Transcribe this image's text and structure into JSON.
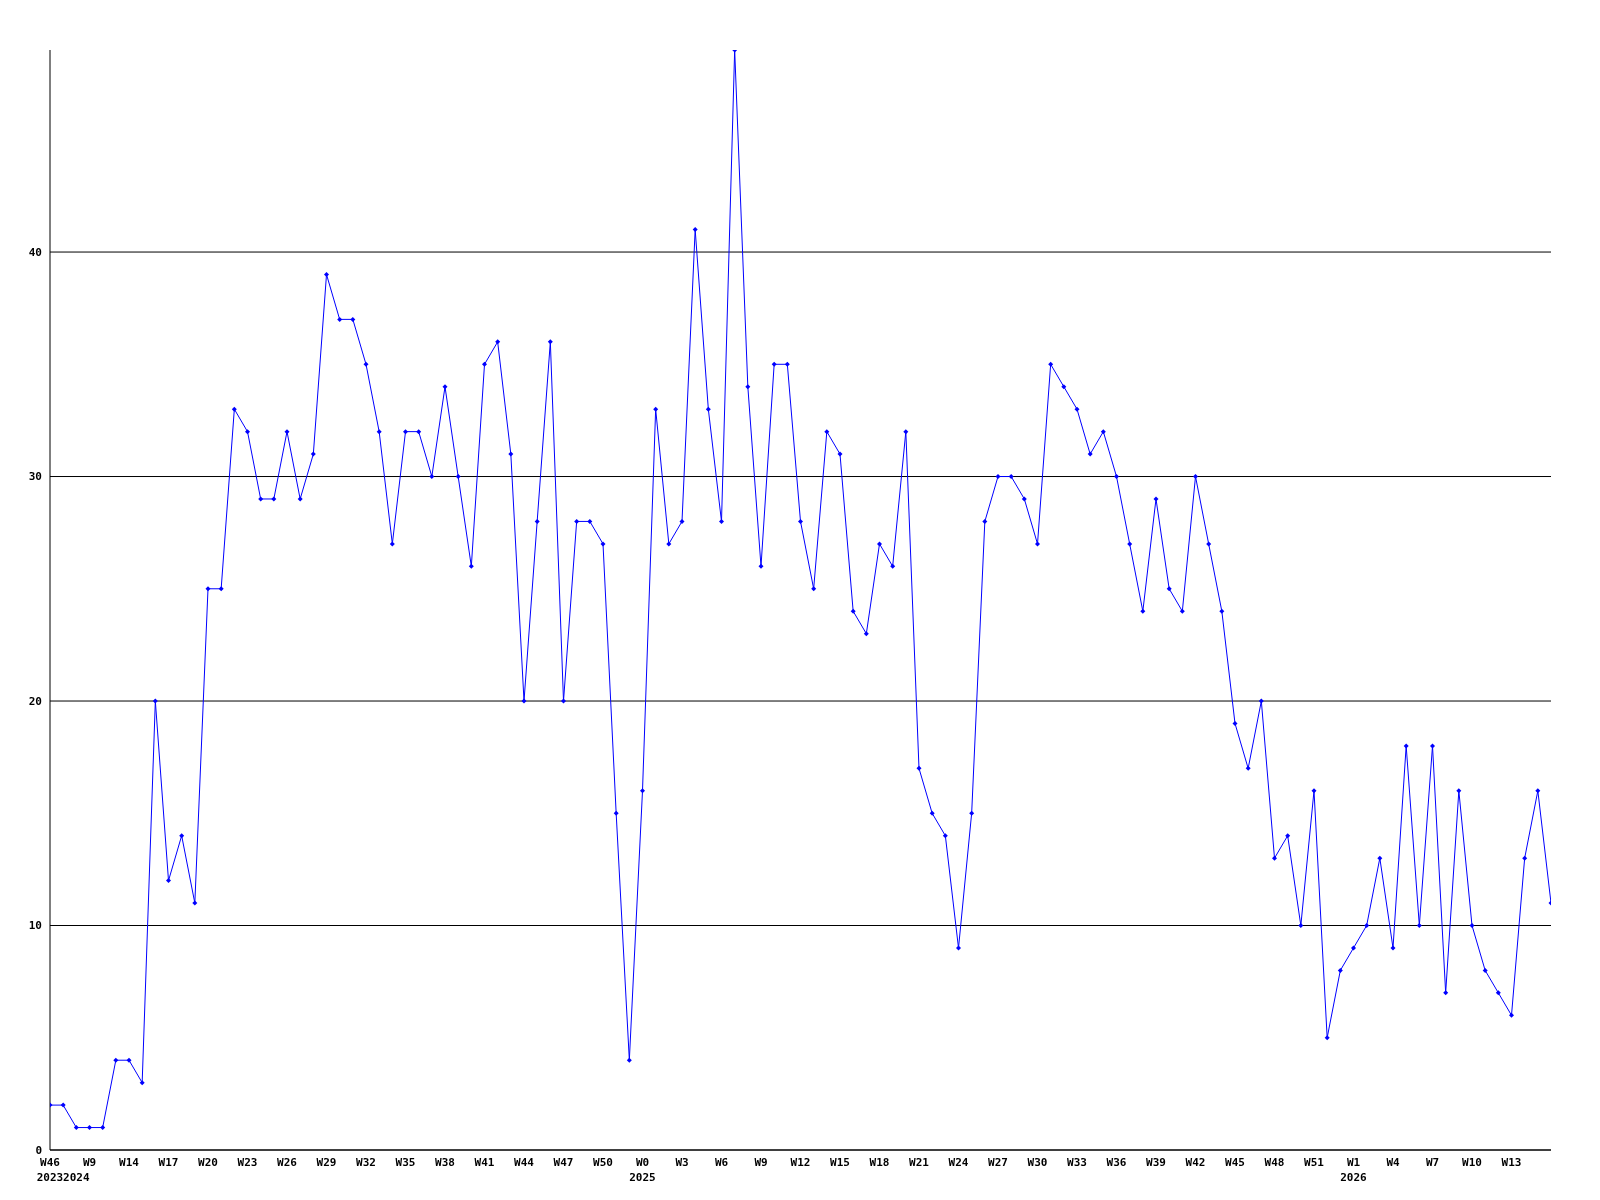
{
  "chart_data": {
    "type": "line",
    "categories": [
      "W46\n2023",
      null,
      "\n2024",
      "W9",
      null,
      null,
      "W14",
      null,
      null,
      "W17",
      null,
      null,
      "W20",
      null,
      null,
      "W23",
      null,
      null,
      "W26",
      null,
      null,
      "W29",
      null,
      null,
      "W32",
      null,
      null,
      "W35",
      null,
      null,
      "W38",
      null,
      null,
      "W41",
      null,
      null,
      "W44",
      null,
      null,
      "W47",
      null,
      null,
      "W50",
      null,
      null,
      "W0\n2025",
      null,
      null,
      "W3",
      null,
      null,
      "W6",
      null,
      null,
      "W9",
      null,
      null,
      "W12",
      null,
      null,
      "W15",
      null,
      null,
      "W18",
      null,
      null,
      "W21",
      null,
      null,
      "W24",
      null,
      null,
      "W27",
      null,
      null,
      "W30",
      null,
      null,
      "W33",
      null,
      null,
      "W36",
      null,
      null,
      "W39",
      null,
      null,
      "W42",
      null,
      null,
      "W45",
      null,
      null,
      "W48",
      null,
      null,
      "W51",
      null,
      null,
      "W1\n2026",
      null,
      null,
      "W4",
      null,
      null,
      "W7",
      null,
      null,
      "W10",
      null,
      null,
      "W13",
      null,
      null,
      null
    ],
    "series": [
      {
        "color": "#0000ff",
        "values": [
          2,
          2,
          1,
          1,
          1,
          4,
          4,
          3,
          20,
          12,
          14,
          11,
          25,
          25,
          33,
          32,
          29,
          29,
          32,
          29,
          31,
          39,
          37,
          37,
          35,
          32,
          27,
          32,
          32,
          30,
          34,
          30,
          26,
          35,
          36,
          31,
          20,
          28,
          36,
          20,
          28,
          28,
          27,
          15,
          4,
          16,
          33,
          27,
          28,
          41,
          33,
          28,
          49,
          34,
          26,
          35,
          35,
          28,
          25,
          32,
          31,
          24,
          23,
          27,
          26,
          32,
          17,
          15,
          14,
          9,
          15,
          28,
          30,
          30,
          29,
          27,
          35,
          34,
          33,
          31,
          32,
          30,
          27,
          24,
          29,
          25,
          24,
          30,
          27,
          24,
          19,
          17,
          20,
          13,
          14,
          10,
          16,
          5,
          8,
          9,
          10,
          13,
          9,
          18,
          10,
          18,
          7,
          16,
          10,
          8,
          7,
          6,
          13,
          16,
          11
        ]
      }
    ],
    "ylim": [
      0,
      49
    ],
    "yticks": [
      0,
      10,
      20,
      30,
      40
    ],
    "grid": "y",
    "marker": "diamond",
    "line_style": "solid"
  }
}
